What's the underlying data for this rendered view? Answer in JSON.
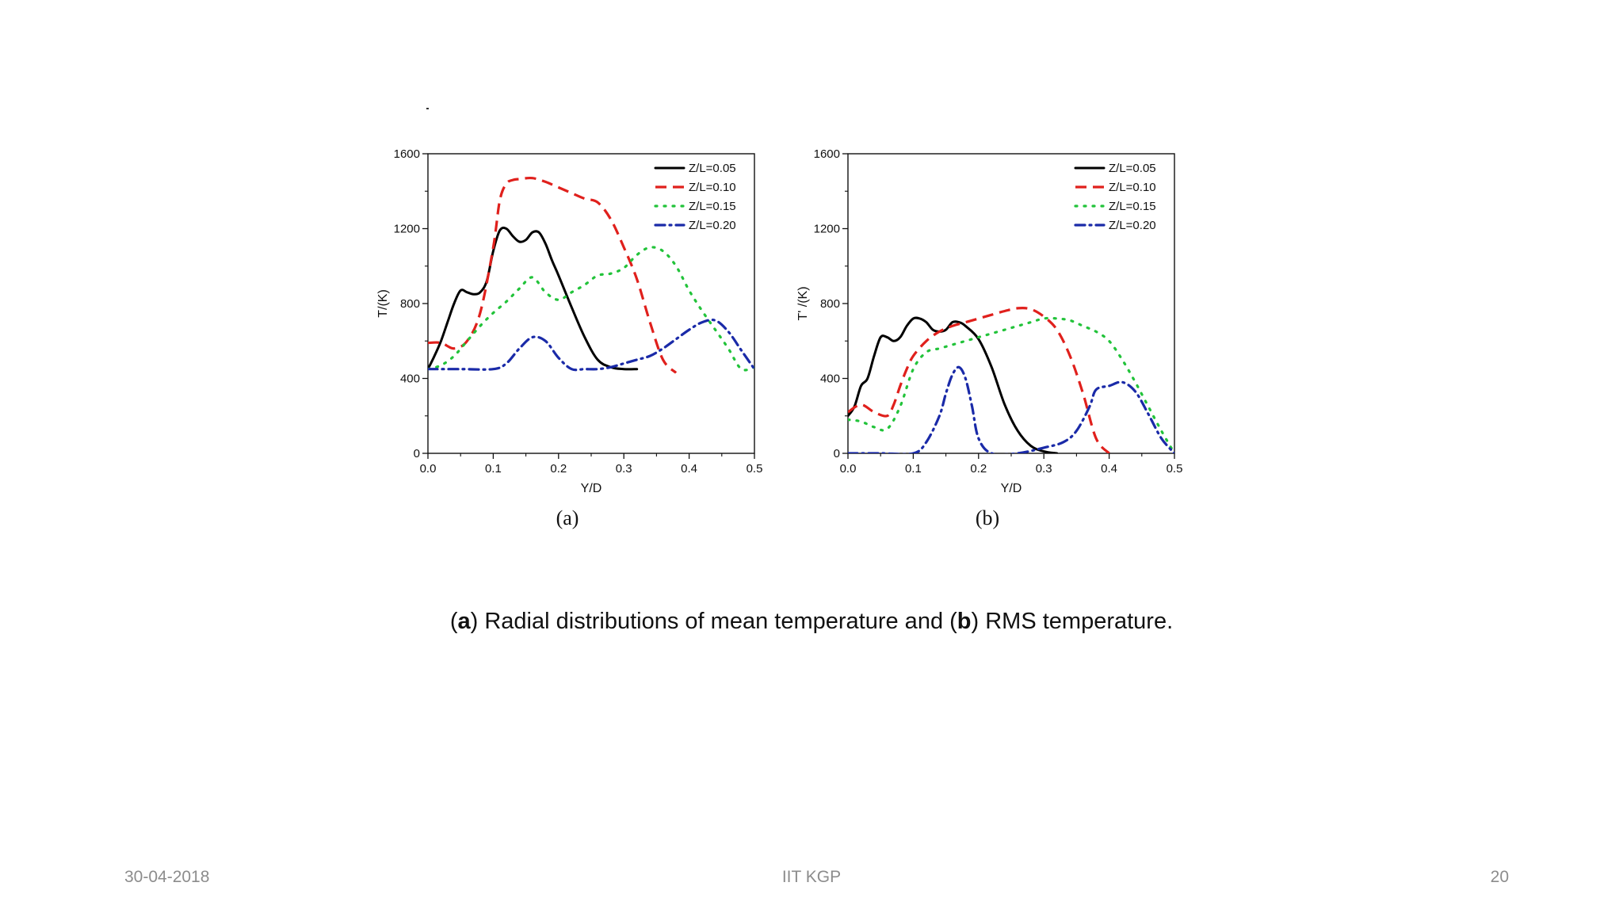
{
  "caption": {
    "a_label": "a",
    "a_text": "Radial distributions of mean temperature and",
    "b_label": "b",
    "b_text": "RMS temperature."
  },
  "footer": {
    "date": "30-04-2018",
    "center": "IIT KGP",
    "page": "20"
  },
  "colors": {
    "series": [
      "#000000",
      "#e0201c",
      "#22c33a",
      "#1a2aa8"
    ]
  },
  "chart_data": [
    {
      "type": "line",
      "panel_label": "(a)",
      "xlabel": "Y/D",
      "ylabel": "T/(K)",
      "xlim": [
        0.0,
        0.5
      ],
      "ylim": [
        0,
        1600
      ],
      "xticks": [
        "0.0",
        "0.1",
        "0.2",
        "0.3",
        "0.4",
        "0.5"
      ],
      "yticks": [
        "0",
        "400",
        "800",
        "1200",
        "1600"
      ],
      "legend": "top-right",
      "series": [
        {
          "name": "Z/L=0.05",
          "style": "solid",
          "x": [
            0.0,
            0.01,
            0.02,
            0.03,
            0.04,
            0.05,
            0.06,
            0.07,
            0.08,
            0.09,
            0.1,
            0.11,
            0.12,
            0.13,
            0.14,
            0.15,
            0.16,
            0.17,
            0.18,
            0.19,
            0.2,
            0.22,
            0.24,
            0.26,
            0.28,
            0.3,
            0.32
          ],
          "y": [
            450,
            520,
            600,
            700,
            800,
            870,
            860,
            850,
            860,
            920,
            1080,
            1190,
            1200,
            1160,
            1130,
            1140,
            1180,
            1180,
            1120,
            1030,
            950,
            780,
            620,
            500,
            460,
            450,
            450
          ]
        },
        {
          "name": "Z/L=0.10",
          "style": "dashed",
          "x": [
            0.0,
            0.02,
            0.04,
            0.06,
            0.08,
            0.1,
            0.11,
            0.12,
            0.13,
            0.14,
            0.16,
            0.18,
            0.2,
            0.22,
            0.24,
            0.26,
            0.28,
            0.3,
            0.32,
            0.34,
            0.36,
            0.38
          ],
          "y": [
            590,
            590,
            560,
            600,
            750,
            1100,
            1350,
            1440,
            1460,
            1465,
            1470,
            1450,
            1420,
            1390,
            1360,
            1340,
            1250,
            1100,
            930,
            700,
            500,
            430
          ]
        },
        {
          "name": "Z/L=0.15",
          "style": "dotted",
          "x": [
            0.0,
            0.02,
            0.04,
            0.06,
            0.08,
            0.1,
            0.12,
            0.14,
            0.16,
            0.18,
            0.2,
            0.22,
            0.24,
            0.26,
            0.28,
            0.3,
            0.32,
            0.34,
            0.36,
            0.38,
            0.4,
            0.42,
            0.44,
            0.46,
            0.48,
            0.5
          ],
          "y": [
            450,
            470,
            520,
            600,
            680,
            750,
            810,
            880,
            940,
            860,
            820,
            860,
            900,
            950,
            960,
            990,
            1060,
            1100,
            1080,
            1000,
            870,
            760,
            660,
            560,
            450,
            460
          ]
        },
        {
          "name": "Z/L=0.20",
          "style": "dashdot",
          "x": [
            0.0,
            0.05,
            0.1,
            0.12,
            0.14,
            0.16,
            0.18,
            0.2,
            0.22,
            0.24,
            0.26,
            0.28,
            0.3,
            0.32,
            0.34,
            0.36,
            0.38,
            0.4,
            0.42,
            0.44,
            0.46,
            0.48,
            0.5
          ],
          "y": [
            450,
            450,
            450,
            480,
            560,
            620,
            600,
            510,
            450,
            450,
            450,
            460,
            480,
            500,
            520,
            560,
            610,
            660,
            700,
            710,
            650,
            550,
            450
          ]
        }
      ]
    },
    {
      "type": "line",
      "panel_label": "(b)",
      "xlabel": "Y/D",
      "ylabel": "T' /(K)",
      "xlim": [
        0.0,
        0.5
      ],
      "ylim": [
        0,
        1600
      ],
      "xticks": [
        "0.0",
        "0.1",
        "0.2",
        "0.3",
        "0.4",
        "0.5"
      ],
      "yticks": [
        "0",
        "400",
        "800",
        "1200",
        "1600"
      ],
      "legend": "top-right",
      "series": [
        {
          "name": "Z/L=0.05",
          "style": "solid",
          "x": [
            0.0,
            0.01,
            0.02,
            0.03,
            0.04,
            0.05,
            0.06,
            0.07,
            0.08,
            0.09,
            0.1,
            0.11,
            0.12,
            0.13,
            0.14,
            0.15,
            0.16,
            0.17,
            0.18,
            0.2,
            0.22,
            0.24,
            0.26,
            0.28,
            0.3,
            0.32
          ],
          "y": [
            200,
            250,
            360,
            400,
            520,
            620,
            620,
            600,
            620,
            680,
            720,
            720,
            700,
            660,
            650,
            660,
            700,
            700,
            680,
            610,
            460,
            260,
            120,
            40,
            10,
            0
          ]
        },
        {
          "name": "Z/L=0.10",
          "style": "dashed",
          "x": [
            0.0,
            0.02,
            0.04,
            0.06,
            0.07,
            0.08,
            0.09,
            0.1,
            0.12,
            0.14,
            0.16,
            0.18,
            0.2,
            0.22,
            0.24,
            0.26,
            0.28,
            0.3,
            0.32,
            0.34,
            0.36,
            0.38,
            0.4
          ],
          "y": [
            220,
            260,
            220,
            200,
            260,
            360,
            450,
            520,
            600,
            650,
            680,
            700,
            720,
            740,
            760,
            775,
            770,
            730,
            660,
            520,
            320,
            80,
            0
          ]
        },
        {
          "name": "Z/L=0.15",
          "style": "dotted",
          "x": [
            0.0,
            0.02,
            0.04,
            0.06,
            0.08,
            0.1,
            0.12,
            0.14,
            0.16,
            0.18,
            0.2,
            0.22,
            0.24,
            0.26,
            0.28,
            0.3,
            0.32,
            0.34,
            0.36,
            0.38,
            0.4,
            0.42,
            0.44,
            0.46,
            0.48,
            0.5
          ],
          "y": [
            180,
            170,
            140,
            130,
            250,
            450,
            540,
            560,
            580,
            600,
            620,
            640,
            660,
            680,
            700,
            720,
            720,
            710,
            680,
            650,
            600,
            500,
            380,
            250,
            120,
            0
          ]
        },
        {
          "name": "Z/L=0.20",
          "style": "dashdot",
          "x": [
            0.0,
            0.05,
            0.1,
            0.12,
            0.14,
            0.15,
            0.16,
            0.17,
            0.18,
            0.19,
            0.2,
            0.22,
            0.26,
            0.3,
            0.33,
            0.35,
            0.37,
            0.38,
            0.4,
            0.42,
            0.44,
            0.46,
            0.48,
            0.5
          ],
          "y": [
            0,
            0,
            0,
            60,
            200,
            320,
            420,
            460,
            400,
            250,
            80,
            0,
            0,
            30,
            60,
            120,
            250,
            340,
            360,
            380,
            330,
            210,
            80,
            0
          ]
        }
      ]
    }
  ]
}
